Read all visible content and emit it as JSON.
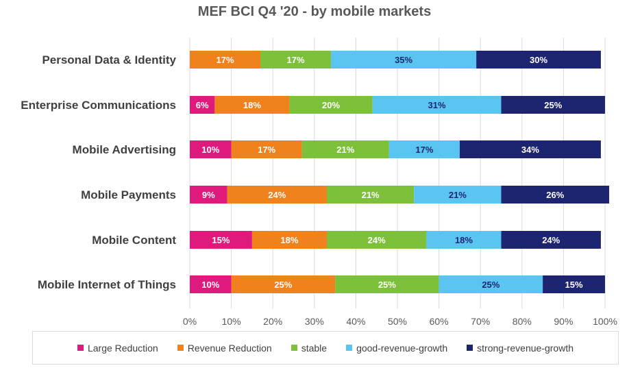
{
  "chart_data": {
    "type": "bar",
    "orientation": "horizontal",
    "stacked": true,
    "percent": true,
    "title": "MEF BCI Q4 '20 - by mobile markets",
    "categories": [
      "Personal Data & Identity",
      "Enterprise Communications",
      "Mobile Advertising",
      "Mobile Payments",
      "Mobile Content",
      "Mobile Internet of Things"
    ],
    "series": [
      {
        "name": "Large Reduction",
        "color": "#e0197d",
        "values": [
          0,
          6,
          10,
          9,
          15,
          10
        ],
        "labels": [
          "",
          "6%",
          "10%",
          "9%",
          "15%",
          "10%"
        ]
      },
      {
        "name": "Revenue Reduction",
        "color": "#f0821e",
        "values": [
          17,
          18,
          17,
          24,
          18,
          25
        ],
        "labels": [
          "17%",
          "18%",
          "17%",
          "24%",
          "18%",
          "25%"
        ]
      },
      {
        "name": "stable",
        "color": "#7dc13a",
        "values": [
          17,
          20,
          21,
          21,
          24,
          25
        ],
        "labels": [
          "17%",
          "20%",
          "21%",
          "21%",
          "24%",
          "25%"
        ]
      },
      {
        "name": "good-revenue-growth",
        "color": "#5bc5f2",
        "values": [
          35,
          31,
          17,
          21,
          18,
          25
        ],
        "labels": [
          "35%",
          "31%",
          "17%",
          "21%",
          "18%",
          "25%"
        ]
      },
      {
        "name": "strong-revenue-growth",
        "color": "#1e2570",
        "values": [
          30,
          25,
          34,
          26,
          24,
          15
        ],
        "labels": [
          "30%",
          "25%",
          "34%",
          "26%",
          "24%",
          "15%"
        ]
      }
    ],
    "xlim": [
      0,
      100
    ],
    "xticks": [
      "0%",
      "10%",
      "20%",
      "30%",
      "40%",
      "50%",
      "60%",
      "70%",
      "80%",
      "90%",
      "100%"
    ],
    "grid": true,
    "legend": "bottom"
  }
}
